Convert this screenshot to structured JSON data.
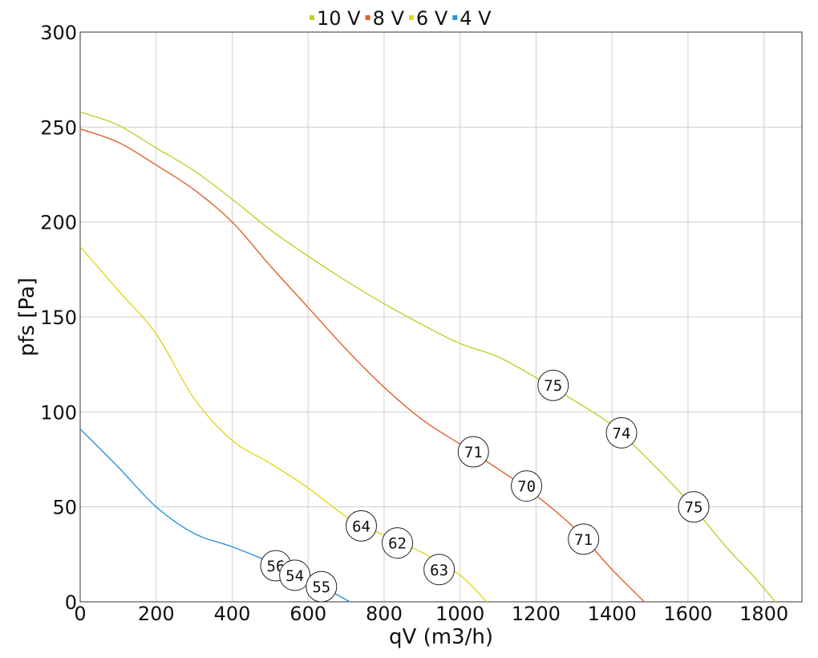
{
  "chart_data": {
    "type": "line",
    "xlabel": "qV (m3/h)",
    "ylabel": "pfs [Pa]",
    "xlim": [
      0,
      1900
    ],
    "ylim": [
      0,
      300
    ],
    "x_ticks": [
      0,
      200,
      400,
      600,
      800,
      1000,
      1200,
      1400,
      1600,
      1800
    ],
    "y_ticks": [
      0,
      50,
      100,
      150,
      200,
      250,
      300
    ],
    "grid": true,
    "legend_position": "top-center",
    "series": [
      {
        "name": "10 V",
        "color": "#b5d62a",
        "points": [
          [
            0,
            258
          ],
          [
            100,
            251
          ],
          [
            200,
            239
          ],
          [
            300,
            227
          ],
          [
            400,
            212
          ],
          [
            500,
            196
          ],
          [
            600,
            182
          ],
          [
            700,
            169
          ],
          [
            800,
            157
          ],
          [
            900,
            146
          ],
          [
            1000,
            136
          ],
          [
            1100,
            129
          ],
          [
            1200,
            118
          ],
          [
            1300,
            106
          ],
          [
            1400,
            93
          ],
          [
            1500,
            74
          ],
          [
            1600,
            53
          ],
          [
            1700,
            29
          ],
          [
            1770,
            14
          ],
          [
            1830,
            0
          ]
        ]
      },
      {
        "name": "8 V",
        "color": "#e0622a",
        "points": [
          [
            0,
            249
          ],
          [
            100,
            242
          ],
          [
            200,
            230
          ],
          [
            300,
            217
          ],
          [
            400,
            200
          ],
          [
            500,
            177
          ],
          [
            600,
            155
          ],
          [
            700,
            133
          ],
          [
            800,
            113
          ],
          [
            900,
            96
          ],
          [
            1000,
            83
          ],
          [
            1100,
            70
          ],
          [
            1200,
            56
          ],
          [
            1300,
            39
          ],
          [
            1400,
            17
          ],
          [
            1485,
            0
          ]
        ]
      },
      {
        "name": "6 V",
        "color": "#e1d81f",
        "points": [
          [
            0,
            187
          ],
          [
            100,
            164
          ],
          [
            200,
            141
          ],
          [
            300,
            107
          ],
          [
            400,
            85
          ],
          [
            500,
            73
          ],
          [
            600,
            60
          ],
          [
            700,
            45
          ],
          [
            800,
            35
          ],
          [
            900,
            26
          ],
          [
            1000,
            14
          ],
          [
            1070,
            0
          ]
        ]
      },
      {
        "name": "4 V",
        "color": "#2b93d9",
        "points": [
          [
            0,
            91
          ],
          [
            100,
            71
          ],
          [
            200,
            50
          ],
          [
            300,
            36
          ],
          [
            400,
            29
          ],
          [
            500,
            21
          ],
          [
            600,
            12
          ],
          [
            710,
            0
          ]
        ]
      }
    ],
    "annotations": [
      {
        "text": "75",
        "x": 1245,
        "y": 114
      },
      {
        "text": "74",
        "x": 1425,
        "y": 89
      },
      {
        "text": "75",
        "x": 1615,
        "y": 50
      },
      {
        "text": "71",
        "x": 1035,
        "y": 79
      },
      {
        "text": "70",
        "x": 1175,
        "y": 61
      },
      {
        "text": "71",
        "x": 1325,
        "y": 33
      },
      {
        "text": "64",
        "x": 740,
        "y": 40
      },
      {
        "text": "62",
        "x": 835,
        "y": 31
      },
      {
        "text": "63",
        "x": 945,
        "y": 17
      },
      {
        "text": "56",
        "x": 515,
        "y": 19
      },
      {
        "text": "54",
        "x": 565,
        "y": 14
      },
      {
        "text": "55",
        "x": 635,
        "y": 8
      }
    ]
  }
}
